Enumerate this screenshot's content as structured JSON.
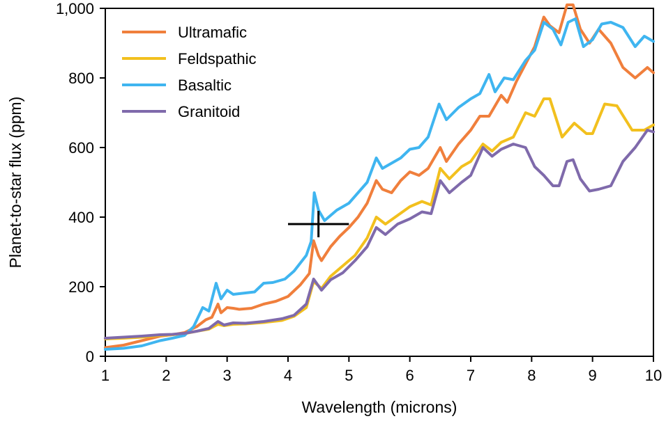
{
  "chart_data": {
    "type": "line",
    "title": "",
    "xlabel": "Wavelength (microns)",
    "ylabel": "Planet-to-star flux (ppm)",
    "xlim": [
      1,
      10
    ],
    "ylim": [
      0,
      1000
    ],
    "xticks": [
      1,
      2,
      3,
      4,
      5,
      6,
      7,
      8,
      9,
      10
    ],
    "xtick_labels": [
      "1",
      "2",
      "3",
      "4",
      "5",
      "6",
      "7",
      "8",
      "9",
      "10"
    ],
    "yticks": [
      0,
      200,
      400,
      600,
      800,
      1000
    ],
    "ytick_labels": [
      "0",
      "200",
      "400",
      "600",
      "800",
      "1,000"
    ],
    "grid": false,
    "legend_position": "top-left",
    "series": [
      {
        "name": "Ultramafic",
        "color": "#f07f3c",
        "points": [
          [
            1,
            25
          ],
          [
            1.3,
            32
          ],
          [
            1.6,
            45
          ],
          [
            1.9,
            58
          ],
          [
            2.1,
            62
          ],
          [
            2.3,
            68
          ],
          [
            2.5,
            85
          ],
          [
            2.65,
            105
          ],
          [
            2.75,
            112
          ],
          [
            2.85,
            150
          ],
          [
            2.9,
            125
          ],
          [
            3.0,
            140
          ],
          [
            3.1,
            138
          ],
          [
            3.2,
            135
          ],
          [
            3.4,
            138
          ],
          [
            3.6,
            150
          ],
          [
            3.8,
            158
          ],
          [
            4.0,
            172
          ],
          [
            4.2,
            205
          ],
          [
            4.35,
            238
          ],
          [
            4.42,
            332
          ],
          [
            4.5,
            290
          ],
          [
            4.55,
            275
          ],
          [
            4.7,
            315
          ],
          [
            4.85,
            345
          ],
          [
            5.0,
            370
          ],
          [
            5.15,
            400
          ],
          [
            5.3,
            440
          ],
          [
            5.45,
            505
          ],
          [
            5.55,
            480
          ],
          [
            5.7,
            470
          ],
          [
            5.85,
            505
          ],
          [
            6.0,
            530
          ],
          [
            6.15,
            520
          ],
          [
            6.3,
            540
          ],
          [
            6.5,
            600
          ],
          [
            6.6,
            560
          ],
          [
            6.8,
            610
          ],
          [
            7.0,
            650
          ],
          [
            7.15,
            690
          ],
          [
            7.3,
            690
          ],
          [
            7.5,
            750
          ],
          [
            7.6,
            730
          ],
          [
            7.75,
            790
          ],
          [
            7.9,
            840
          ],
          [
            8.05,
            890
          ],
          [
            8.2,
            975
          ],
          [
            8.3,
            950
          ],
          [
            8.45,
            930
          ],
          [
            8.58,
            1010
          ],
          [
            8.68,
            1010
          ],
          [
            8.8,
            940
          ],
          [
            8.95,
            900
          ],
          [
            9.1,
            940
          ],
          [
            9.3,
            900
          ],
          [
            9.5,
            830
          ],
          [
            9.7,
            800
          ],
          [
            9.9,
            830
          ],
          [
            10.0,
            815
          ]
        ]
      },
      {
        "name": "Feldspathic",
        "color": "#f2c01e",
        "points": [
          [
            1,
            50
          ],
          [
            1.3,
            52
          ],
          [
            1.6,
            55
          ],
          [
            1.9,
            60
          ],
          [
            2.1,
            62
          ],
          [
            2.3,
            65
          ],
          [
            2.5,
            72
          ],
          [
            2.7,
            78
          ],
          [
            2.85,
            92
          ],
          [
            2.95,
            88
          ],
          [
            3.1,
            92
          ],
          [
            3.3,
            93
          ],
          [
            3.6,
            97
          ],
          [
            3.9,
            103
          ],
          [
            4.1,
            115
          ],
          [
            4.3,
            140
          ],
          [
            4.42,
            215
          ],
          [
            4.55,
            195
          ],
          [
            4.7,
            230
          ],
          [
            4.9,
            260
          ],
          [
            5.1,
            290
          ],
          [
            5.3,
            340
          ],
          [
            5.45,
            400
          ],
          [
            5.6,
            380
          ],
          [
            5.8,
            405
          ],
          [
            6.0,
            430
          ],
          [
            6.2,
            445
          ],
          [
            6.35,
            435
          ],
          [
            6.5,
            540
          ],
          [
            6.65,
            510
          ],
          [
            6.85,
            545
          ],
          [
            7.0,
            560
          ],
          [
            7.2,
            610
          ],
          [
            7.35,
            590
          ],
          [
            7.5,
            615
          ],
          [
            7.7,
            630
          ],
          [
            7.9,
            700
          ],
          [
            8.05,
            690
          ],
          [
            8.2,
            740
          ],
          [
            8.3,
            740
          ],
          [
            8.5,
            630
          ],
          [
            8.7,
            670
          ],
          [
            8.9,
            640
          ],
          [
            9.0,
            640
          ],
          [
            9.2,
            725
          ],
          [
            9.4,
            720
          ],
          [
            9.65,
            650
          ],
          [
            9.85,
            650
          ],
          [
            10.0,
            665
          ]
        ]
      },
      {
        "name": "Basaltic",
        "color": "#3fb5f0",
        "points": [
          [
            1,
            20
          ],
          [
            1.3,
            23
          ],
          [
            1.6,
            30
          ],
          [
            1.9,
            45
          ],
          [
            2.1,
            52
          ],
          [
            2.3,
            60
          ],
          [
            2.45,
            85
          ],
          [
            2.6,
            140
          ],
          [
            2.7,
            130
          ],
          [
            2.82,
            210
          ],
          [
            2.9,
            165
          ],
          [
            3.0,
            190
          ],
          [
            3.1,
            178
          ],
          [
            3.3,
            182
          ],
          [
            3.45,
            185
          ],
          [
            3.6,
            210
          ],
          [
            3.75,
            212
          ],
          [
            3.95,
            222
          ],
          [
            4.1,
            245
          ],
          [
            4.3,
            290
          ],
          [
            4.38,
            330
          ],
          [
            4.43,
            470
          ],
          [
            4.5,
            420
          ],
          [
            4.6,
            390
          ],
          [
            4.8,
            420
          ],
          [
            5.0,
            440
          ],
          [
            5.15,
            470
          ],
          [
            5.3,
            500
          ],
          [
            5.45,
            570
          ],
          [
            5.55,
            540
          ],
          [
            5.7,
            555
          ],
          [
            5.85,
            570
          ],
          [
            6.0,
            595
          ],
          [
            6.15,
            600
          ],
          [
            6.3,
            630
          ],
          [
            6.48,
            725
          ],
          [
            6.6,
            680
          ],
          [
            6.8,
            715
          ],
          [
            7.0,
            740
          ],
          [
            7.15,
            755
          ],
          [
            7.3,
            810
          ],
          [
            7.4,
            760
          ],
          [
            7.55,
            800
          ],
          [
            7.7,
            795
          ],
          [
            7.9,
            850
          ],
          [
            8.05,
            880
          ],
          [
            8.2,
            960
          ],
          [
            8.35,
            940
          ],
          [
            8.48,
            895
          ],
          [
            8.6,
            960
          ],
          [
            8.72,
            970
          ],
          [
            8.85,
            890
          ],
          [
            9.0,
            910
          ],
          [
            9.15,
            955
          ],
          [
            9.3,
            960
          ],
          [
            9.5,
            945
          ],
          [
            9.7,
            890
          ],
          [
            9.85,
            920
          ],
          [
            10.0,
            905
          ]
        ]
      },
      {
        "name": "Granitoid",
        "color": "#7f6aab",
        "points": [
          [
            1,
            52
          ],
          [
            1.3,
            55
          ],
          [
            1.6,
            58
          ],
          [
            1.9,
            62
          ],
          [
            2.1,
            63
          ],
          [
            2.3,
            66
          ],
          [
            2.5,
            72
          ],
          [
            2.7,
            80
          ],
          [
            2.85,
            100
          ],
          [
            2.95,
            90
          ],
          [
            3.1,
            96
          ],
          [
            3.3,
            95
          ],
          [
            3.6,
            100
          ],
          [
            3.9,
            108
          ],
          [
            4.1,
            118
          ],
          [
            4.3,
            150
          ],
          [
            4.42,
            222
          ],
          [
            4.55,
            190
          ],
          [
            4.7,
            220
          ],
          [
            4.9,
            240
          ],
          [
            5.1,
            275
          ],
          [
            5.3,
            315
          ],
          [
            5.45,
            370
          ],
          [
            5.6,
            350
          ],
          [
            5.8,
            380
          ],
          [
            6.0,
            395
          ],
          [
            6.2,
            415
          ],
          [
            6.35,
            410
          ],
          [
            6.5,
            505
          ],
          [
            6.65,
            470
          ],
          [
            6.85,
            500
          ],
          [
            7.0,
            520
          ],
          [
            7.2,
            600
          ],
          [
            7.35,
            575
          ],
          [
            7.5,
            595
          ],
          [
            7.7,
            610
          ],
          [
            7.9,
            600
          ],
          [
            8.05,
            545
          ],
          [
            8.2,
            520
          ],
          [
            8.35,
            490
          ],
          [
            8.45,
            490
          ],
          [
            8.58,
            560
          ],
          [
            8.68,
            565
          ],
          [
            8.8,
            510
          ],
          [
            8.95,
            475
          ],
          [
            9.1,
            480
          ],
          [
            9.3,
            490
          ],
          [
            9.5,
            560
          ],
          [
            9.7,
            600
          ],
          [
            9.9,
            650
          ],
          [
            10.0,
            645
          ]
        ]
      }
    ],
    "error_bar": {
      "x": 4.5,
      "y": 380,
      "x_err": 0.5,
      "y_err": 38,
      "color": "#000000"
    }
  }
}
